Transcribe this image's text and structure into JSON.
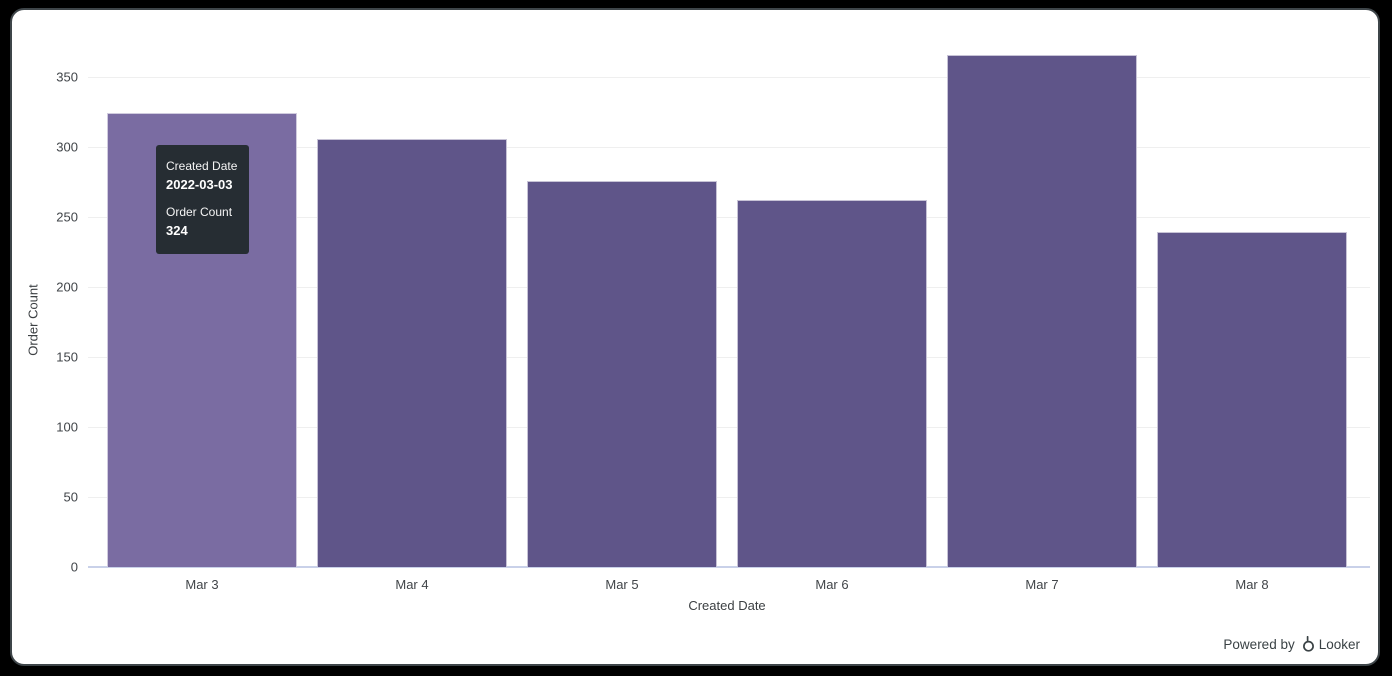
{
  "chart_data": {
    "type": "bar",
    "title": "",
    "categories": [
      "Mar 3",
      "Mar 4",
      "Mar 5",
      "Mar 6",
      "Mar 7",
      "Mar 8"
    ],
    "values": [
      324,
      306,
      276,
      262,
      366,
      239
    ],
    "xlabel": "Created Date",
    "ylabel": "Order Count",
    "ylim": [
      0,
      350
    ],
    "yticks": [
      0,
      50,
      100,
      150,
      200,
      250,
      300,
      350
    ],
    "grid": true,
    "legend": "none",
    "bar_color_default": "#5f5589",
    "bar_color_hover": "#7a6ca2",
    "hovered_index": 0
  },
  "tooltip": {
    "label1": "Created Date",
    "value1": "2022-03-03",
    "label2": "Order Count",
    "value2": "324"
  },
  "footer": {
    "powered_by": "Powered by",
    "brand": "Looker",
    "logo_icon": "looker-logo-icon"
  }
}
